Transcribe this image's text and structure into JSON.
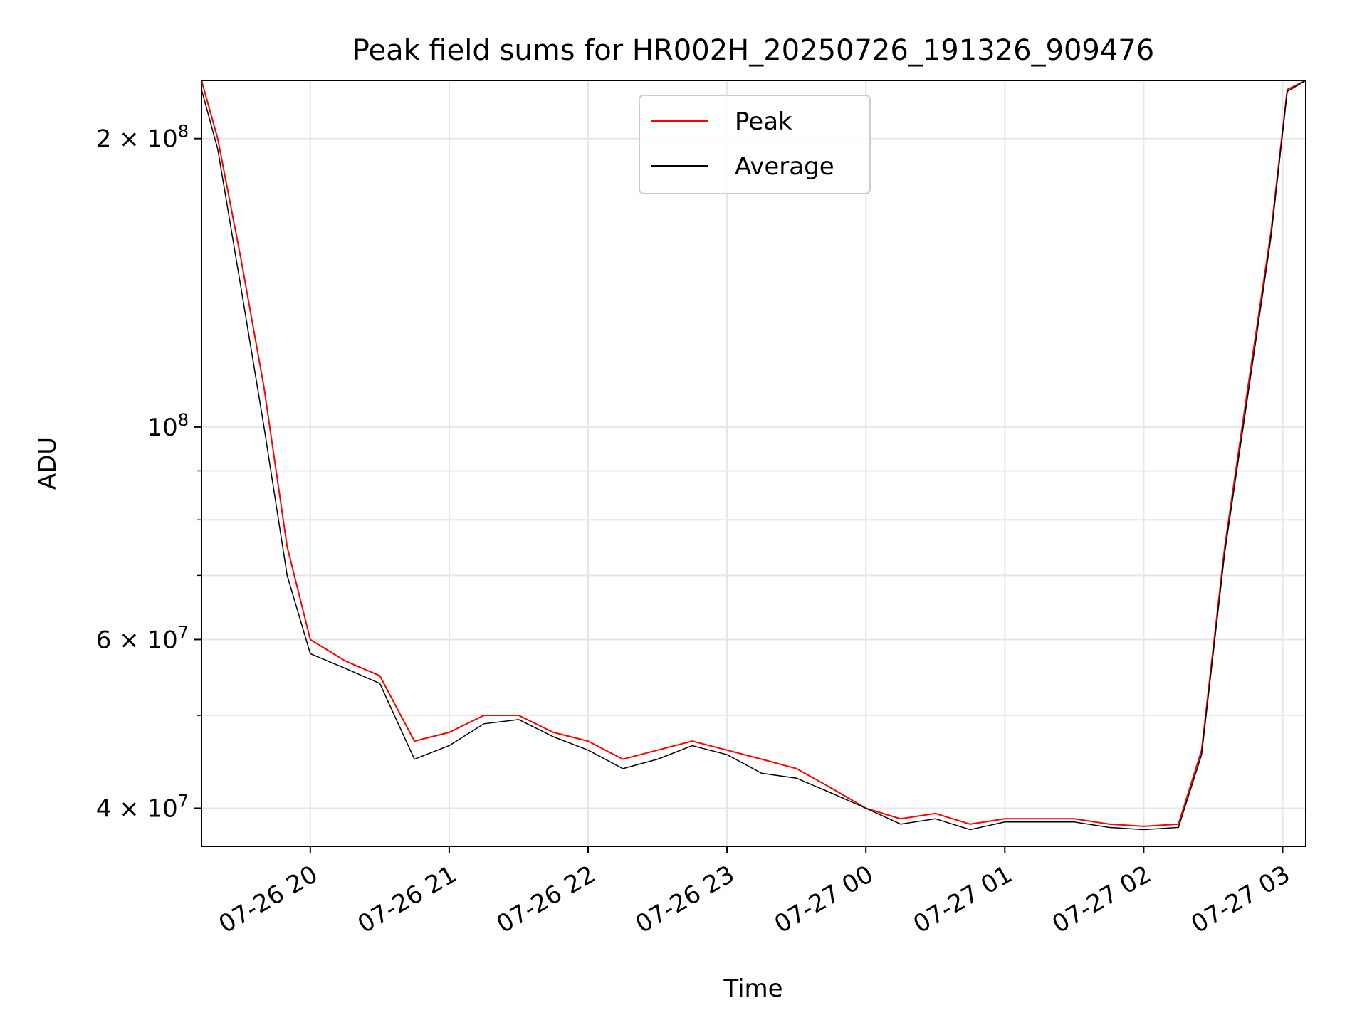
{
  "chart_data": {
    "type": "line",
    "title": "Peak field sums for HR002H_20250726_191326_909476",
    "xlabel": "Time",
    "ylabel": "ADU",
    "y_scale": "log",
    "ylim": [
      36500000,
      230000000
    ],
    "xlim": [
      "2025-07-26 19:13",
      "2025-07-27 03:10"
    ],
    "grid": true,
    "legend_position": "upper center",
    "x_ticks": [
      {
        "value": "2025-07-26 20:00",
        "label": "07-26 20"
      },
      {
        "value": "2025-07-26 21:00",
        "label": "07-26 21"
      },
      {
        "value": "2025-07-26 22:00",
        "label": "07-26 22"
      },
      {
        "value": "2025-07-26 23:00",
        "label": "07-26 23"
      },
      {
        "value": "2025-07-27 00:00",
        "label": "07-27 00"
      },
      {
        "value": "2025-07-27 01:00",
        "label": "07-27 01"
      },
      {
        "value": "2025-07-27 02:00",
        "label": "07-27 02"
      },
      {
        "value": "2025-07-27 03:00",
        "label": "07-27 03"
      }
    ],
    "y_ticks": [
      {
        "value": 40000000,
        "mantissa": "4",
        "exponent": "7"
      },
      {
        "value": 60000000,
        "mantissa": "6",
        "exponent": "7"
      },
      {
        "value": 100000000,
        "mantissa": "",
        "exponent": "8"
      },
      {
        "value": 200000000,
        "mantissa": "2",
        "exponent": "8"
      }
    ],
    "y_minor_ticks": [
      50000000,
      70000000,
      80000000,
      90000000
    ],
    "series": [
      {
        "name": "Peak",
        "color": "#ff0000",
        "x": [
          "2025-07-26 19:13",
          "2025-07-26 19:20",
          "2025-07-26 19:30",
          "2025-07-26 19:40",
          "2025-07-26 19:50",
          "2025-07-26 20:00",
          "2025-07-26 20:15",
          "2025-07-26 20:30",
          "2025-07-26 20:45",
          "2025-07-26 21:00",
          "2025-07-26 21:15",
          "2025-07-26 21:30",
          "2025-07-26 21:45",
          "2025-07-26 22:00",
          "2025-07-26 22:15",
          "2025-07-26 22:30",
          "2025-07-26 22:45",
          "2025-07-26 23:00",
          "2025-07-26 23:15",
          "2025-07-26 23:30",
          "2025-07-26 23:45",
          "2025-07-27 00:00",
          "2025-07-27 00:15",
          "2025-07-27 00:30",
          "2025-07-27 00:45",
          "2025-07-27 01:00",
          "2025-07-27 01:15",
          "2025-07-27 01:30",
          "2025-07-27 01:45",
          "2025-07-27 02:00",
          "2025-07-27 02:15",
          "2025-07-27 02:25",
          "2025-07-27 02:35",
          "2025-07-27 02:45",
          "2025-07-27 02:55",
          "2025-07-27 03:02",
          "2025-07-27 03:10"
        ],
        "values": [
          230000000,
          200000000,
          150000000,
          110000000,
          75000000,
          60000000,
          57000000,
          55000000,
          47000000,
          48000000,
          50000000,
          50000000,
          48000000,
          47000000,
          45000000,
          46000000,
          47000000,
          46000000,
          45000000,
          44000000,
          42000000,
          40000000,
          39000000,
          39500000,
          38500000,
          39000000,
          39000000,
          39000000,
          38500000,
          38300000,
          38500000,
          46000000,
          75000000,
          110000000,
          160000000,
          225000000,
          230000000
        ]
      },
      {
        "name": "Average",
        "color": "#000000",
        "x": [
          "2025-07-26 19:13",
          "2025-07-26 19:20",
          "2025-07-26 19:30",
          "2025-07-26 19:40",
          "2025-07-26 19:50",
          "2025-07-26 20:00",
          "2025-07-26 20:15",
          "2025-07-26 20:30",
          "2025-07-26 20:45",
          "2025-07-26 21:00",
          "2025-07-26 21:15",
          "2025-07-26 21:30",
          "2025-07-26 21:45",
          "2025-07-26 22:00",
          "2025-07-26 22:15",
          "2025-07-26 22:30",
          "2025-07-26 22:45",
          "2025-07-26 23:00",
          "2025-07-26 23:15",
          "2025-07-26 23:30",
          "2025-07-26 23:45",
          "2025-07-27 00:00",
          "2025-07-27 00:15",
          "2025-07-27 00:30",
          "2025-07-27 00:45",
          "2025-07-27 01:00",
          "2025-07-27 01:15",
          "2025-07-27 01:30",
          "2025-07-27 01:45",
          "2025-07-27 02:00",
          "2025-07-27 02:15",
          "2025-07-27 02:25",
          "2025-07-27 02:35",
          "2025-07-27 02:45",
          "2025-07-27 02:55",
          "2025-07-27 03:02",
          "2025-07-27 03:10"
        ],
        "values": [
          225000000,
          195000000,
          140000000,
          100000000,
          70000000,
          58000000,
          56000000,
          54000000,
          45000000,
          46500000,
          49000000,
          49500000,
          47500000,
          46000000,
          44000000,
          45000000,
          46500000,
          45500000,
          43500000,
          43000000,
          41500000,
          40000000,
          38500000,
          39000000,
          38000000,
          38700000,
          38700000,
          38700000,
          38200000,
          38000000,
          38200000,
          45500000,
          74000000,
          108000000,
          158000000,
          224000000,
          230000000
        ]
      }
    ]
  }
}
